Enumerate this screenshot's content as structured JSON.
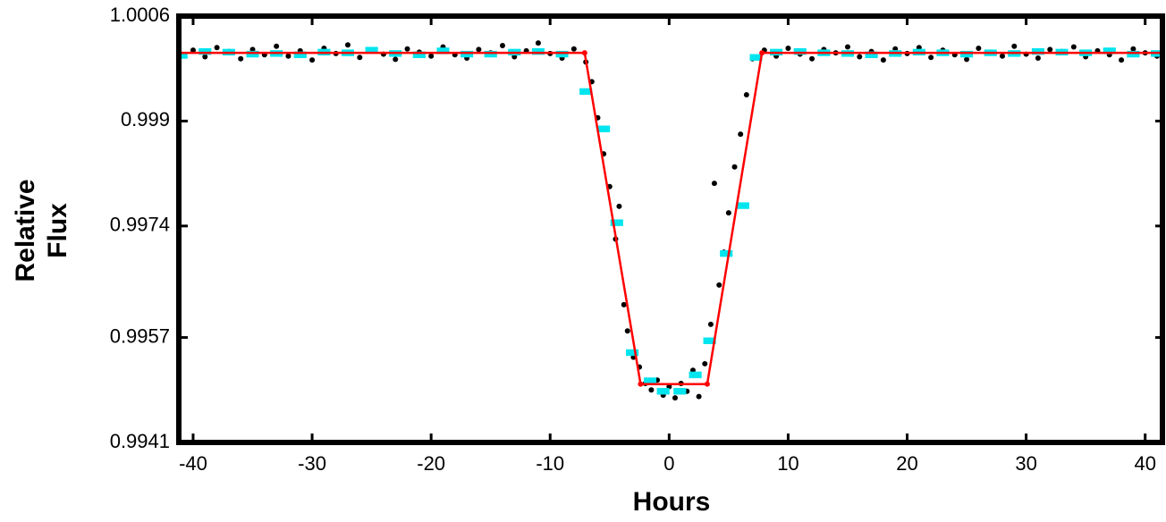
{
  "chart_data": {
    "type": "scatter",
    "xlabel": "Hours",
    "ylabel": [
      "Relative",
      "Flux"
    ],
    "xlim": [
      -41.2,
      41.6
    ],
    "ylim": [
      0.9941,
      1.0006
    ],
    "xticks": [
      -40,
      -30,
      -20,
      -10,
      0,
      10,
      20,
      30,
      40
    ],
    "yticks": [
      0.9941,
      0.9957,
      0.9974,
      0.999,
      1.0006
    ],
    "series": [
      {
        "style": "points",
        "color": "#000000",
        "x": [
          -41,
          -40,
          -39,
          -38,
          -37,
          -36,
          -35,
          -34,
          -33,
          -32,
          -31,
          -30,
          -29,
          -28,
          -27,
          -26,
          -25,
          -24,
          -23,
          -22,
          -21,
          -20,
          -19,
          -18,
          -17,
          -16,
          -15,
          -14,
          -13,
          -12,
          -11,
          -10,
          -9,
          -8,
          -7.0,
          -6.5,
          -6.0,
          -5.5,
          -5.0,
          -4.5,
          -4.2,
          -3.8,
          -3.5,
          -3.0,
          -2.5,
          -2.0,
          -1.5,
          -1.0,
          -0.5,
          0,
          0.5,
          1.0,
          1.5,
          2.0,
          2.5,
          3.0,
          3.5,
          3.8,
          4.2,
          4.6,
          5.0,
          5.5,
          6.0,
          6.5,
          7.0,
          8,
          9,
          10,
          11,
          12,
          13,
          14,
          15,
          16,
          17,
          18,
          19,
          20,
          21,
          22,
          23,
          24,
          25,
          26,
          27,
          28,
          29,
          30,
          31,
          32,
          33,
          34,
          35,
          36,
          37,
          38,
          39,
          40,
          41
        ],
        "values": [
          1.00002,
          1.00008,
          0.99998,
          1.00012,
          1.00006,
          0.99995,
          1.00009,
          1.00001,
          1.00014,
          0.99999,
          1.00007,
          0.99993,
          1.00011,
          1.00003,
          1.00016,
          0.99997,
          1.00008,
          1.00002,
          0.99994,
          1.0001,
          1.00005,
          0.99999,
          1.00013,
          1.00001,
          0.99996,
          1.00009,
          1.00004,
          1.00015,
          0.99998,
          1.00007,
          1.00019,
          1.00003,
          0.99996,
          1.0001,
          0.9999,
          0.9996,
          0.99905,
          0.9985,
          0.998,
          0.9972,
          0.9977,
          0.9962,
          0.9958,
          0.9954,
          0.99525,
          0.995,
          0.9949,
          0.99505,
          0.99482,
          0.99495,
          0.99478,
          0.995,
          0.99488,
          0.9952,
          0.9948,
          0.9953,
          0.9959,
          0.99805,
          0.9965,
          0.997,
          0.9976,
          0.9983,
          0.9988,
          0.9994,
          0.99995,
          1.00008,
          0.99999,
          1.00011,
          1.00002,
          0.99995,
          1.00009,
          1.00004,
          1.00013,
          0.99998,
          1.00006,
          0.99993,
          1.0001,
          1.00003,
          1.00012,
          0.99997,
          1.00008,
          1.00001,
          0.99994,
          1.00011,
          1.00005,
          0.99999,
          1.00014,
          1.00002,
          0.99996,
          1.00009,
          1.00006,
          1.00013,
          0.99998,
          1.00007,
          1.00001,
          0.99993,
          1.0001,
          1.00004,
          0.99999
        ]
      },
      {
        "style": "errorbar",
        "color": "#00e5ee",
        "error": 3e-05,
        "x": [
          -41,
          -39,
          -37,
          -35,
          -33,
          -31,
          -29,
          -27,
          -25,
          -23,
          -21,
          -19,
          -17,
          -15,
          -13,
          -11,
          -9,
          -7.0,
          -5.5,
          -4.4,
          -3.1,
          -1.6,
          -0.5,
          0.9,
          2.2,
          3.4,
          4.8,
          6.2,
          7.3,
          9,
          11,
          13,
          15,
          17,
          19,
          21,
          23,
          25,
          27,
          29,
          31,
          33,
          35,
          37,
          39,
          41
        ],
        "values": [
          1.0,
          1.00006,
          1.00005,
          1.00002,
          1.00003,
          1.00001,
          1.00005,
          1.00004,
          1.00008,
          1.00003,
          1.00001,
          1.00007,
          1.00002,
          1.00002,
          1.00005,
          1.00006,
          1.00002,
          0.99945,
          0.99888,
          0.99745,
          0.99547,
          0.99504,
          0.99488,
          0.99488,
          0.99513,
          0.99565,
          0.99698,
          0.99771,
          0.99997,
          1.00005,
          1.00006,
          1.00004,
          1.00003,
          1.00001,
          1.00003,
          1.00005,
          1.00004,
          1.00002,
          1.00004,
          1.00003,
          1.00006,
          1.00005,
          1.00004,
          1.00007,
          1.00002,
          1.00003
        ]
      },
      {
        "style": "line",
        "color": "#ff0000",
        "x": [
          -41.2,
          -7.1,
          -2.4,
          3.2,
          7.8,
          41.6
        ],
        "values": [
          1.00004,
          1.00004,
          0.99499,
          0.99499,
          1.00004,
          1.00004
        ]
      }
    ]
  }
}
